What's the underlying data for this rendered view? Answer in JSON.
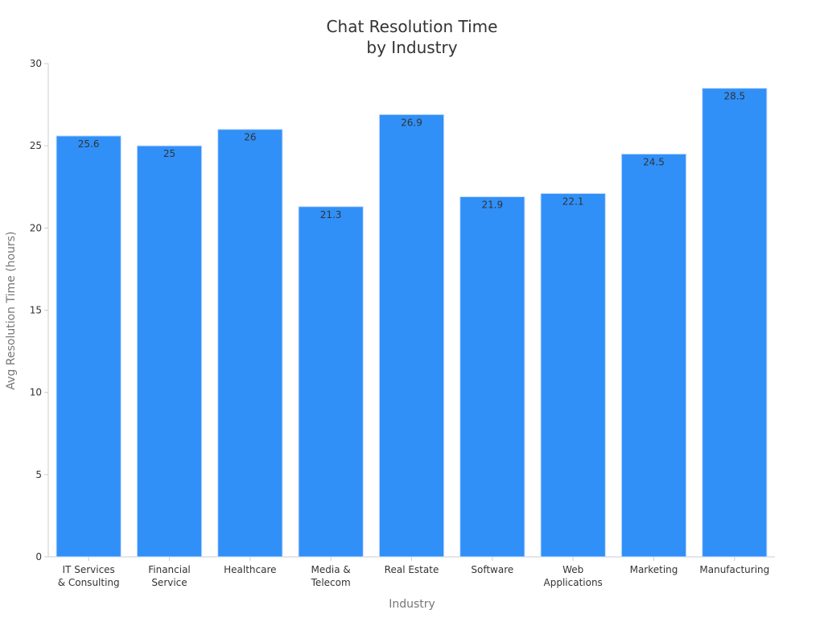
{
  "chart_data": {
    "type": "bar",
    "title_lines": [
      "Chat Resolution Time",
      "by Industry"
    ],
    "xlabel": "Industry",
    "ylabel": "Avg Resolution Time (hours)",
    "categories": [
      [
        "IT Services",
        "& Consulting"
      ],
      [
        "Financial",
        "Service"
      ],
      [
        "Healthcare"
      ],
      [
        "Media &",
        "Telecom"
      ],
      [
        "Real Estate"
      ],
      [
        "Software"
      ],
      [
        "Web",
        "Applications"
      ],
      [
        "Marketing"
      ],
      [
        "Manufacturing"
      ]
    ],
    "values": [
      25.6,
      25,
      26,
      21.3,
      26.9,
      21.9,
      22.1,
      24.5,
      28.5
    ],
    "value_labels": [
      "25.6",
      "25",
      "26",
      "21.3",
      "26.9",
      "21.9",
      "22.1",
      "24.5",
      "28.5"
    ],
    "ylim": [
      0,
      30
    ],
    "yticks": [
      0,
      5,
      10,
      15,
      20,
      25,
      30
    ],
    "grid": false,
    "legend": "none",
    "bar_color": "#3090f8"
  }
}
